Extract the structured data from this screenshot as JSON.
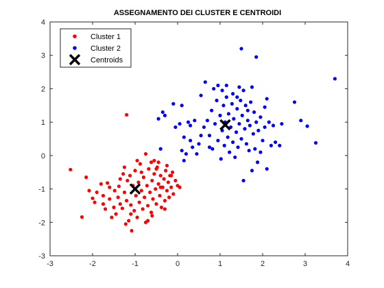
{
  "chart_data": {
    "type": "scatter",
    "title": "ASSEGNAMENTO DEI CLUSTER E CENTROIDI",
    "xlabel": "",
    "ylabel": "",
    "xlim": [
      -3,
      4
    ],
    "ylim": [
      -3,
      4
    ],
    "xticks": [
      "-3",
      "-2",
      "-1",
      "0",
      "1",
      "2",
      "3",
      "4"
    ],
    "yticks": [
      "-3",
      "-2",
      "-1",
      "0",
      "1",
      "2",
      "3",
      "4"
    ],
    "grid": false,
    "legend_position": "top-left",
    "series": [
      {
        "name": "Cluster 1",
        "marker": "dot",
        "color": "#ff0000",
        "points": [
          [
            -2.52,
            -0.42
          ],
          [
            -2.25,
            -1.84
          ],
          [
            -2.15,
            -0.65
          ],
          [
            -2.08,
            -1.05
          ],
          [
            -2.0,
            -1.28
          ],
          [
            -1.95,
            -1.4
          ],
          [
            -1.9,
            -1.1
          ],
          [
            -1.8,
            -0.85
          ],
          [
            -1.75,
            -1.2
          ],
          [
            -1.7,
            -1.6
          ],
          [
            -1.65,
            -0.82
          ],
          [
            -1.6,
            -1.3
          ],
          [
            -1.55,
            -1.85
          ],
          [
            -1.5,
            -1.55
          ],
          [
            -1.48,
            -1.05
          ],
          [
            -1.45,
            -1.75
          ],
          [
            -1.4,
            -1.25
          ],
          [
            -1.38,
            -0.92
          ],
          [
            -1.35,
            -1.45
          ],
          [
            -1.3,
            -1.58
          ],
          [
            -1.28,
            -0.55
          ],
          [
            -1.25,
            -1.1
          ],
          [
            -1.22,
            -2.05
          ],
          [
            -1.2,
            -1.35
          ],
          [
            -1.18,
            -0.75
          ],
          [
            -1.15,
            -1.95
          ],
          [
            -1.12,
            -0.6
          ],
          [
            -1.1,
            -1.48
          ],
          [
            -1.08,
            -2.25
          ],
          [
            -1.05,
            -0.9
          ],
          [
            -1.02,
            -1.65
          ],
          [
            -1.0,
            -0.45
          ],
          [
            -0.98,
            -1.2
          ],
          [
            -0.95,
            -1.85
          ],
          [
            -0.92,
            -0.8
          ],
          [
            -0.9,
            -1.4
          ],
          [
            -0.88,
            -0.25
          ],
          [
            -0.85,
            -1.05
          ],
          [
            -0.82,
            -1.6
          ],
          [
            -0.8,
            -0.65
          ],
          [
            -0.78,
            -1.25
          ],
          [
            -0.75,
            -2.0
          ],
          [
            -0.72,
            -0.9
          ],
          [
            -0.7,
            -1.5
          ],
          [
            -0.68,
            -0.4
          ],
          [
            -0.65,
            -1.1
          ],
          [
            -0.62,
            -1.7
          ],
          [
            -0.6,
            -0.75
          ],
          [
            -0.58,
            -1.3
          ],
          [
            -0.55,
            -0.55
          ],
          [
            -0.52,
            -1.0
          ],
          [
            -0.5,
            -1.45
          ],
          [
            -0.48,
            -0.35
          ],
          [
            -0.45,
            -0.85
          ],
          [
            -0.42,
            -1.2
          ],
          [
            -0.4,
            -0.6
          ],
          [
            -0.38,
            -1.55
          ],
          [
            -0.35,
            -0.95
          ],
          [
            -0.32,
            -0.7
          ],
          [
            -0.3,
            -1.35
          ],
          [
            -0.28,
            -0.45
          ],
          [
            -0.25,
            -1.05
          ],
          [
            -0.22,
            -0.8
          ],
          [
            -0.2,
            -1.25
          ],
          [
            -0.18,
            -0.6
          ],
          [
            -0.15,
            -0.95
          ],
          [
            -0.12,
            -0.5
          ],
          [
            -0.1,
            -1.15
          ],
          [
            -0.05,
            -0.75
          ],
          [
            0.0,
            -0.9
          ],
          [
            0.05,
            -0.95
          ],
          [
            -0.55,
            -0.15
          ],
          [
            -0.45,
            -0.2
          ],
          [
            -0.6,
            -1.8
          ],
          [
            -1.2,
            1.22
          ],
          [
            -0.95,
            -0.15
          ],
          [
            -0.75,
            0.05
          ],
          [
            -0.5,
            -0.4
          ],
          [
            -1.35,
            -0.7
          ],
          [
            -1.6,
            -0.95
          ],
          [
            -1.75,
            -1.45
          ],
          [
            -0.7,
            -1.95
          ],
          [
            -1.1,
            -1.75
          ],
          [
            -0.85,
            -0.5
          ],
          [
            -1.25,
            -0.35
          ],
          [
            -0.62,
            -0.2
          ],
          [
            -0.4,
            -0.95
          ],
          [
            -0.25,
            -0.3
          ],
          [
            -0.15,
            -0.6
          ],
          [
            -0.3,
            -1.6
          ]
        ]
      },
      {
        "name": "Cluster 2",
        "marker": "dot",
        "color": "#0000ff",
        "points": [
          [
            0.5,
            0.35
          ],
          [
            0.62,
            0.85
          ],
          [
            0.7,
            1.05
          ],
          [
            0.75,
            0.6
          ],
          [
            0.8,
            1.35
          ],
          [
            0.82,
            0.2
          ],
          [
            0.88,
            0.95
          ],
          [
            0.92,
            1.65
          ],
          [
            0.95,
            0.45
          ],
          [
            1.0,
            1.2
          ],
          [
            1.02,
            -0.1
          ],
          [
            1.05,
            0.75
          ],
          [
            1.08,
            1.5
          ],
          [
            1.1,
            0.3
          ],
          [
            1.12,
            1.0
          ],
          [
            1.15,
            1.75
          ],
          [
            1.18,
            0.55
          ],
          [
            1.2,
            1.25
          ],
          [
            1.22,
            0.1
          ],
          [
            1.25,
            0.85
          ],
          [
            1.28,
            1.55
          ],
          [
            1.3,
            0.4
          ],
          [
            1.32,
            1.1
          ],
          [
            1.35,
            -0.05
          ],
          [
            1.38,
            0.7
          ],
          [
            1.4,
            1.4
          ],
          [
            1.42,
            0.25
          ],
          [
            1.45,
            0.95
          ],
          [
            1.48,
            1.65
          ],
          [
            1.5,
            0.5
          ],
          [
            1.52,
            1.2
          ],
          [
            1.55,
            -0.75
          ],
          [
            1.58,
            0.8
          ],
          [
            1.6,
            1.5
          ],
          [
            1.62,
            0.35
          ],
          [
            1.65,
            1.05
          ],
          [
            1.68,
            0.15
          ],
          [
            1.7,
            0.9
          ],
          [
            1.72,
            1.6
          ],
          [
            1.75,
            -0.45
          ],
          [
            1.78,
            0.65
          ],
          [
            1.8,
            1.3
          ],
          [
            1.82,
            0.2
          ],
          [
            1.85,
            1.0
          ],
          [
            1.88,
            -0.2
          ],
          [
            1.9,
            0.75
          ],
          [
            1.95,
            1.15
          ],
          [
            2.0,
            0.45
          ],
          [
            2.05,
            0.85
          ],
          [
            2.1,
            -0.4
          ],
          [
            2.15,
            1.0
          ],
          [
            2.2,
            0.3
          ],
          [
            2.25,
            0.9
          ],
          [
            2.3,
            0.4
          ],
          [
            1.5,
            3.2
          ],
          [
            1.85,
            2.95
          ],
          [
            2.45,
            0.95
          ],
          [
            2.75,
            1.6
          ],
          [
            2.9,
            1.05
          ],
          [
            3.05,
            0.88
          ],
          [
            3.25,
            0.38
          ],
          [
            3.7,
            2.3
          ],
          [
            2.4,
            0.3
          ],
          [
            2.05,
            1.45
          ],
          [
            0.3,
            0.9
          ],
          [
            0.15,
            0.55
          ],
          [
            0.25,
            1.0
          ],
          [
            -0.05,
            0.85
          ],
          [
            0.1,
            1.5
          ],
          [
            0.2,
            0.05
          ],
          [
            -0.3,
            1.2
          ],
          [
            -0.35,
            1.3
          ],
          [
            -0.1,
            1.55
          ],
          [
            0.35,
            0.25
          ],
          [
            0.55,
            1.8
          ],
          [
            0.65,
            2.2
          ],
          [
            0.85,
            2.0
          ],
          [
            0.95,
            2.1
          ],
          [
            1.05,
            1.95
          ],
          [
            1.15,
            2.1
          ],
          [
            1.3,
            1.85
          ],
          [
            1.45,
            2.05
          ],
          [
            1.55,
            1.95
          ],
          [
            1.75,
            2.05
          ],
          [
            0.45,
            0.05
          ],
          [
            0.15,
            -0.15
          ],
          [
            0.4,
            1.05
          ],
          [
            0.05,
            0.95
          ],
          [
            0.1,
            0.15
          ],
          [
            0.3,
            0.45
          ],
          [
            -0.4,
            0.2
          ],
          [
            -0.45,
            1.1
          ],
          [
            0.55,
            0.6
          ],
          [
            0.75,
            0.25
          ],
          [
            1.95,
            0.1
          ],
          [
            2.1,
            1.7
          ],
          [
            1.65,
            1.35
          ],
          [
            1.4,
            1.75
          ]
        ]
      },
      {
        "name": "Centroids",
        "marker": "x",
        "color": "#000000",
        "points": [
          [
            -1.0,
            -1.0
          ],
          [
            1.12,
            0.92
          ]
        ]
      }
    ]
  }
}
